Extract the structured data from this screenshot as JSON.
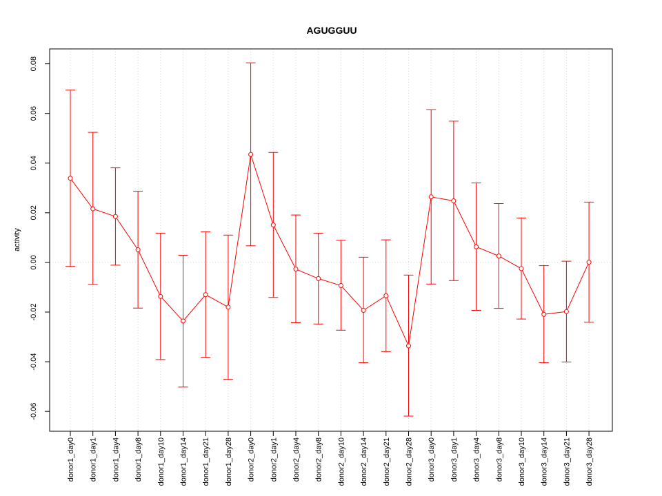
{
  "chart_data": {
    "type": "line",
    "title": "AGUGGUU",
    "xlabel": "",
    "ylabel": "activity",
    "ylim": [
      -0.068,
      0.086
    ],
    "y_ticks": [
      "-0.06",
      "-0.04",
      "-0.02",
      "0.00",
      "0.02",
      "0.04",
      "0.06",
      "0.08"
    ],
    "grid": true,
    "error_bars": true,
    "series_color": "#ff0000",
    "grid_color": "#d3d3d3",
    "categories": [
      "donor1_day0",
      "donor1_day1",
      "donor1_day4",
      "donor1_day8",
      "donor1_day10",
      "donor1_day14",
      "donor1_day21",
      "donor1_day28",
      "donor2_day0",
      "donor2_day1",
      "donor2_day4",
      "donor2_day8",
      "donor2_day10",
      "donor2_day14",
      "donor2_day21",
      "donor2_day28",
      "donor3_day0",
      "donor3_day1",
      "donor3_day4",
      "donor3_day8",
      "donor3_day10",
      "donor3_day14",
      "donor3_day21",
      "donor3_day28"
    ],
    "values": [
      0.0339,
      0.0216,
      0.0185,
      0.0051,
      -0.0137,
      -0.0236,
      -0.013,
      -0.018,
      0.0435,
      0.0151,
      -0.0027,
      -0.0065,
      -0.0093,
      -0.0193,
      -0.0134,
      -0.0336,
      0.0264,
      0.0248,
      0.0063,
      0.0026,
      -0.0025,
      -0.0209,
      -0.0198,
      0.0001
    ],
    "upper": [
      0.0694,
      0.0524,
      0.0381,
      0.0287,
      0.0118,
      0.0029,
      0.0123,
      0.011,
      0.0804,
      0.0443,
      0.0191,
      0.0118,
      0.0089,
      0.0021,
      0.0091,
      -0.0051,
      0.0615,
      0.0569,
      0.032,
      0.0237,
      0.0179,
      -0.0013,
      0.0005,
      0.0243
    ],
    "lower": [
      -0.0016,
      -0.0089,
      -0.0011,
      -0.0184,
      -0.0391,
      -0.0502,
      -0.0382,
      -0.0471,
      0.0067,
      -0.0141,
      -0.0243,
      -0.0248,
      -0.0273,
      -0.0404,
      -0.0359,
      -0.0619,
      -0.0087,
      -0.0073,
      -0.0193,
      -0.0185,
      -0.0228,
      -0.0404,
      -0.0401,
      -0.0241
    ]
  }
}
